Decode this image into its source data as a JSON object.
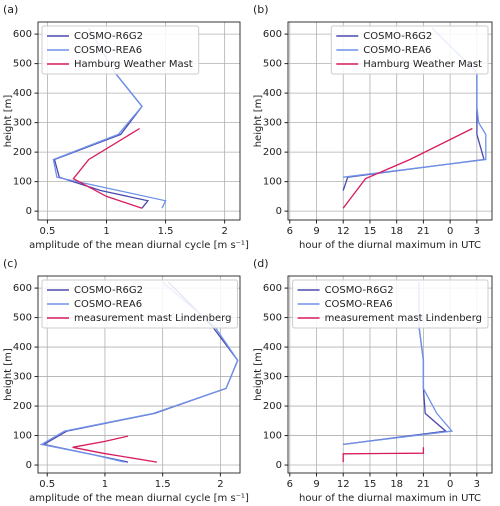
{
  "chart_data": [
    {
      "type": "line",
      "panel_label": "(a)",
      "xlabel": "amplitude of the mean diurnal cycle [m s⁻¹]",
      "ylabel": "height [m]",
      "xlim": [
        0.42,
        2.13
      ],
      "ylim": [
        -30,
        641
      ],
      "xticks": [
        0.5,
        1.0,
        1.5,
        2.0
      ],
      "yticks": [
        0,
        100,
        200,
        300,
        400,
        500,
        600
      ],
      "grid": true,
      "legend": "upper left",
      "series": [
        {
          "name": "COSMO-R6G2",
          "color": "#4a4aae",
          "x": [
            1.3,
            1.35,
            0.95,
            0.6,
            0.56,
            1.12,
            1.3,
            1.07,
            0.85
          ],
          "values": [
            10,
            35,
            70,
            115,
            175,
            260,
            355,
            470,
            620
          ]
        },
        {
          "name": "COSMO-REA6",
          "color": "#6f93e8",
          "x": [
            1.47,
            1.5,
            1.1,
            0.58,
            0.55,
            1.1,
            1.3,
            1.07,
            0.85
          ],
          "values": [
            10,
            35,
            70,
            115,
            175,
            260,
            355,
            470,
            620
          ]
        },
        {
          "name": "Hamburg Weather Mast",
          "color": "#d81b60",
          "x": [
            1.3,
            1.0,
            0.72,
            0.85,
            1.28
          ],
          "values": [
            10,
            50,
            110,
            175,
            280
          ]
        }
      ]
    },
    {
      "type": "line",
      "panel_label": "(b)",
      "xlabel": "hour of the diurnal maximum in UTC",
      "ylabel": "height [m]",
      "xlim": [
        5.8,
        28.7
      ],
      "ylim": [
        -30,
        641
      ],
      "xticks": [
        6,
        9,
        12,
        15,
        18,
        21,
        {
          "value": 24,
          "label": "0"
        },
        {
          "value": 27,
          "label": "3"
        }
      ],
      "yticks": [
        0,
        100,
        200,
        300,
        400,
        500,
        600
      ],
      "grid": true,
      "legend": "upper right",
      "series": [
        {
          "name": "COSMO-R6G2",
          "color": "#4a4aae",
          "x": [
            12,
            12.5,
            27.8,
            27,
            27,
            27,
            22
          ],
          "values": [
            70,
            115,
            175,
            260,
            355,
            470,
            620
          ]
        },
        {
          "name": "COSMO-REA6",
          "color": "#6f93e8",
          "x": [
            12,
            28,
            28,
            27.2,
            27,
            27,
            22
          ],
          "values": [
            115,
            175,
            260,
            300,
            355,
            470,
            620
          ]
        },
        {
          "name": "Hamburg Weather Mast",
          "color": "#d81b60",
          "x": [
            12,
            13,
            14.5,
            19.5,
            26.5
          ],
          "values": [
            10,
            50,
            110,
            175,
            280
          ]
        }
      ]
    },
    {
      "type": "line",
      "panel_label": "(c)",
      "xlabel": "amplitude of the mean diurnal cycle [m s⁻¹]",
      "ylabel": "height [m]",
      "xlim": [
        0.42,
        2.17
      ],
      "ylim": [
        -27,
        641
      ],
      "xticks": [
        0.5,
        1.0,
        1.5,
        2.0
      ],
      "yticks": [
        0,
        100,
        200,
        300,
        400,
        500,
        600
      ],
      "grid": true,
      "legend": "upper left",
      "series": [
        {
          "name": "COSMO-R6G2",
          "color": "#4a4aae",
          "x": [
            1.2,
            0.9,
            0.47,
            0.67,
            1.43,
            2.05,
            2.15,
            1.93,
            1.55
          ],
          "values": [
            10,
            35,
            70,
            115,
            175,
            260,
            355,
            470,
            620
          ]
        },
        {
          "name": "COSMO-REA6",
          "color": "#6f93e8",
          "x": [
            1.17,
            0.9,
            0.45,
            0.65,
            1.42,
            2.05,
            2.15,
            1.95,
            1.5
          ],
          "values": [
            10,
            35,
            70,
            115,
            175,
            260,
            355,
            470,
            620
          ]
        },
        {
          "name": "measurement mast Lindenberg",
          "color": "#d81b60",
          "x": [
            1.45,
            0.98,
            0.72,
            1.0,
            1.2
          ],
          "values": [
            10,
            40,
            60,
            80,
            98
          ]
        }
      ]
    },
    {
      "type": "line",
      "panel_label": "(d)",
      "xlabel": "hour of the diurnal maximum in UTC",
      "ylabel": "height [m]",
      "xlim": [
        5.8,
        28.7
      ],
      "ylim": [
        -27,
        641
      ],
      "xticks": [
        6,
        9,
        12,
        15,
        18,
        21,
        {
          "value": 24,
          "label": "0"
        },
        {
          "value": 27,
          "label": "3"
        }
      ],
      "yticks": [
        0,
        100,
        200,
        300,
        400,
        500,
        600
      ],
      "grid": true,
      "legend": "upper right",
      "series": [
        {
          "name": "COSMO-R6G2",
          "color": "#4a4aae",
          "x": [
            12,
            23.5,
            21.2,
            21,
            21,
            20.5,
            20.5
          ],
          "values": [
            70,
            115,
            175,
            260,
            355,
            470,
            620
          ]
        },
        {
          "name": "COSMO-REA6",
          "color": "#6f93e8",
          "x": [
            12,
            24.2,
            22.5,
            21,
            21,
            20.5,
            20.5
          ],
          "values": [
            70,
            115,
            175,
            260,
            355,
            470,
            620
          ]
        },
        {
          "name": "measurement mast Lindenberg",
          "color": "#d81b60",
          "x": [
            12,
            12,
            21,
            21
          ],
          "values": [
            10,
            38,
            40,
            60
          ]
        }
      ]
    }
  ]
}
